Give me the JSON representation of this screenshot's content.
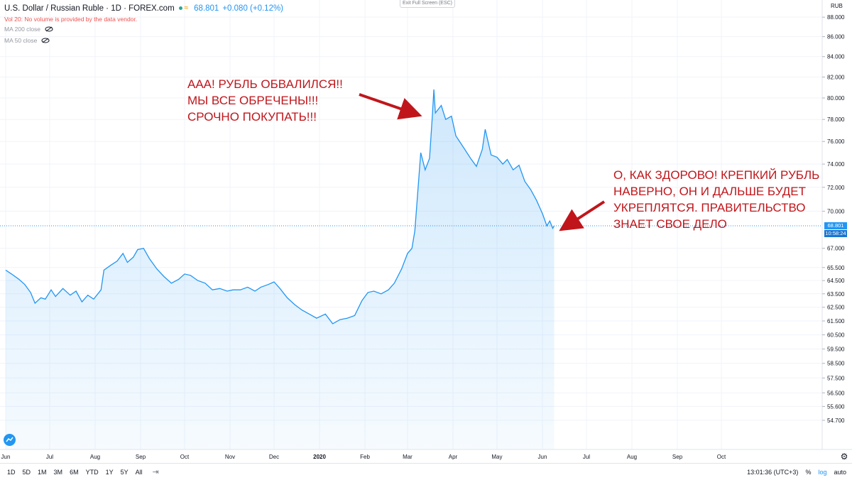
{
  "legend": {
    "title": "U.S. Dollar / Russian Ruble · 1D · FOREX.com",
    "last": "68.801",
    "change": "+0.080 (+0.12%)",
    "vol_notice": "Vol 20: No volume is provided by the data vendor.",
    "ma200": "MA 200 close",
    "ma50": "MA 50 close",
    "status_color": "#26a69a"
  },
  "exit_fullscreen": "Exit Full Screen (ESC)",
  "annotations": {
    "top": [
      "ААА! РУБЛЬ ОБВАЛИЛСЯ!!",
      "МЫ ВСЕ ОБРЕЧЕНЫ!!!",
      "СРОЧНО ПОКУПАТЬ!!!"
    ],
    "right": [
      "О, КАК ЗДОРОВО! КРЕПКИЙ РУБЛЬ",
      "НАВЕРНО, ОН И ДАЛЬШЕ БУДЕТ",
      "УКРЕПЛЯТСЯ. ПРАВИТЕЛЬСТВО",
      "ЗНАЕТ СВОЕ ДЕЛО"
    ],
    "color": "#c0161b"
  },
  "price_axis": {
    "unit": "RUB",
    "current_price": "68.801",
    "countdown": "10:58:24"
  },
  "chart_data": {
    "type": "area",
    "title": "U.S. Dollar / Russian Ruble · 1D · FOREX.com",
    "line_color": "#2196f3",
    "fill_color": "#2196f3",
    "scale": "log",
    "ylim": [
      52.85,
      89.8
    ],
    "yticks": [
      88,
      86,
      84,
      82,
      80,
      78,
      76,
      74,
      72,
      70,
      67,
      65.5,
      64.5,
      63.5,
      62.5,
      61.5,
      60.5,
      59.5,
      58.5,
      57.5,
      56.5,
      55.6,
      54.7
    ],
    "ytick_labels": [
      "88.000",
      "86.000",
      "84.000",
      "82.000",
      "80.000",
      "78.000",
      "76.000",
      "74.000",
      "72.000",
      "70.000",
      "67.000",
      "65.500",
      "64.500",
      "63.500",
      "62.500",
      "61.500",
      "60.500",
      "59.500",
      "58.500",
      "57.500",
      "56.500",
      "55.600",
      "54.700"
    ],
    "x_month_labels": [
      {
        "label": "Jun",
        "date": "2019-06-01"
      },
      {
        "label": "Jul",
        "date": "2019-07-01"
      },
      {
        "label": "Aug",
        "date": "2019-08-01"
      },
      {
        "label": "Sep",
        "date": "2019-09-01"
      },
      {
        "label": "Oct",
        "date": "2019-10-01"
      },
      {
        "label": "Nov",
        "date": "2019-11-01"
      },
      {
        "label": "Dec",
        "date": "2019-12-01"
      },
      {
        "label": "2020",
        "date": "2020-01-01"
      },
      {
        "label": "Feb",
        "date": "2020-02-01"
      },
      {
        "label": "Mar",
        "date": "2020-03-01"
      },
      {
        "label": "Apr",
        "date": "2020-04-01"
      },
      {
        "label": "May",
        "date": "2020-05-01"
      },
      {
        "label": "Jun",
        "date": "2020-06-01"
      },
      {
        "label": "Jul",
        "date": "2020-07-01"
      },
      {
        "label": "Aug",
        "date": "2020-08-01"
      },
      {
        "label": "Sep",
        "date": "2020-09-01"
      },
      {
        "label": "Oct",
        "date": "2020-10-01"
      }
    ],
    "current_price": 68.801,
    "series": [
      {
        "points": [
          [
            "2019-06-01",
            65.3
          ],
          [
            "2019-06-05",
            65.0
          ],
          [
            "2019-06-10",
            64.6
          ],
          [
            "2019-06-14",
            64.2
          ],
          [
            "2019-06-18",
            63.6
          ],
          [
            "2019-06-21",
            62.8
          ],
          [
            "2019-06-25",
            63.2
          ],
          [
            "2019-06-28",
            63.1
          ],
          [
            "2019-07-02",
            63.8
          ],
          [
            "2019-07-05",
            63.3
          ],
          [
            "2019-07-10",
            63.9
          ],
          [
            "2019-07-15",
            63.4
          ],
          [
            "2019-07-19",
            63.7
          ],
          [
            "2019-07-23",
            62.9
          ],
          [
            "2019-07-27",
            63.4
          ],
          [
            "2019-07-31",
            63.1
          ],
          [
            "2019-08-05",
            63.8
          ],
          [
            "2019-08-07",
            65.3
          ],
          [
            "2019-08-12",
            65.7
          ],
          [
            "2019-08-16",
            66.0
          ],
          [
            "2019-08-20",
            66.6
          ],
          [
            "2019-08-23",
            65.9
          ],
          [
            "2019-08-27",
            66.3
          ],
          [
            "2019-08-30",
            66.9
          ],
          [
            "2019-09-03",
            67.0
          ],
          [
            "2019-09-07",
            66.2
          ],
          [
            "2019-09-12",
            65.4
          ],
          [
            "2019-09-17",
            64.8
          ],
          [
            "2019-09-22",
            64.3
          ],
          [
            "2019-09-27",
            64.6
          ],
          [
            "2019-10-01",
            65.0
          ],
          [
            "2019-10-05",
            64.9
          ],
          [
            "2019-10-10",
            64.5
          ],
          [
            "2019-10-15",
            64.3
          ],
          [
            "2019-10-20",
            63.8
          ],
          [
            "2019-10-25",
            63.9
          ],
          [
            "2019-10-30",
            63.7
          ],
          [
            "2019-11-03",
            63.8
          ],
          [
            "2019-11-08",
            63.8
          ],
          [
            "2019-11-13",
            64.0
          ],
          [
            "2019-11-18",
            63.7
          ],
          [
            "2019-11-22",
            64.0
          ],
          [
            "2019-11-27",
            64.2
          ],
          [
            "2019-12-01",
            64.4
          ],
          [
            "2019-12-05",
            63.9
          ],
          [
            "2019-12-10",
            63.2
          ],
          [
            "2019-12-15",
            62.7
          ],
          [
            "2019-12-20",
            62.3
          ],
          [
            "2019-12-25",
            62.0
          ],
          [
            "2019-12-30",
            61.7
          ],
          [
            "2020-01-05",
            62.0
          ],
          [
            "2020-01-10",
            61.3
          ],
          [
            "2020-01-15",
            61.6
          ],
          [
            "2020-01-20",
            61.7
          ],
          [
            "2020-01-25",
            61.9
          ],
          [
            "2020-01-30",
            63.0
          ],
          [
            "2020-02-03",
            63.6
          ],
          [
            "2020-02-07",
            63.7
          ],
          [
            "2020-02-12",
            63.5
          ],
          [
            "2020-02-17",
            63.8
          ],
          [
            "2020-02-21",
            64.3
          ],
          [
            "2020-02-26",
            65.4
          ],
          [
            "2020-03-01",
            66.6
          ],
          [
            "2020-03-04",
            67.0
          ],
          [
            "2020-03-06",
            68.4
          ],
          [
            "2020-03-10",
            75.0
          ],
          [
            "2020-03-13",
            73.5
          ],
          [
            "2020-03-16",
            74.5
          ],
          [
            "2020-03-18",
            78.5
          ],
          [
            "2020-03-19",
            80.8
          ],
          [
            "2020-03-20",
            78.6
          ],
          [
            "2020-03-24",
            79.3
          ],
          [
            "2020-03-27",
            78.0
          ],
          [
            "2020-03-31",
            78.3
          ],
          [
            "2020-04-03",
            76.5
          ],
          [
            "2020-04-08",
            75.5
          ],
          [
            "2020-04-13",
            74.5
          ],
          [
            "2020-04-17",
            73.8
          ],
          [
            "2020-04-21",
            75.3
          ],
          [
            "2020-04-23",
            77.1
          ],
          [
            "2020-04-27",
            74.8
          ],
          [
            "2020-05-01",
            74.6
          ],
          [
            "2020-05-05",
            74.0
          ],
          [
            "2020-05-08",
            74.4
          ],
          [
            "2020-05-12",
            73.5
          ],
          [
            "2020-05-16",
            73.9
          ],
          [
            "2020-05-20",
            72.5
          ],
          [
            "2020-05-24",
            71.8
          ],
          [
            "2020-05-28",
            70.9
          ],
          [
            "2020-06-01",
            69.8
          ],
          [
            "2020-06-04",
            68.8
          ],
          [
            "2020-06-06",
            69.2
          ],
          [
            "2020-06-08",
            68.6
          ],
          [
            "2020-06-09",
            68.801
          ]
        ]
      }
    ]
  },
  "bottom_bar": {
    "ranges": [
      "1D",
      "5D",
      "1M",
      "3M",
      "6M",
      "YTD",
      "1Y",
      "5Y",
      "All"
    ],
    "time": "13:01:36 (UTC+3)",
    "percent": "%",
    "log": "log",
    "auto": "auto"
  }
}
